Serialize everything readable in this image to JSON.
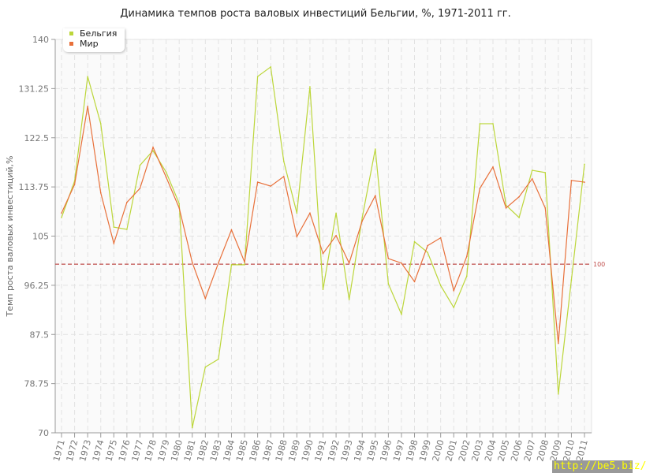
{
  "chart_data": {
    "type": "line",
    "title": "Динамика темпов роста валовых инвестиций Бельгии, %, 1971-2011 гг.",
    "ylabel": "Темп роста валовых инвестиций,%",
    "xlabel": "",
    "ylim": [
      70,
      140
    ],
    "yticks": [
      "70",
      "78.75",
      "87.5",
      "96.25",
      "105",
      "113.75",
      "122.5",
      "131.25",
      "140"
    ],
    "x": [
      1971,
      1972,
      1973,
      1974,
      1975,
      1976,
      1977,
      1978,
      1979,
      1980,
      1981,
      1982,
      1983,
      1984,
      1985,
      1986,
      1987,
      1988,
      1989,
      1990,
      1991,
      1992,
      1993,
      1994,
      1995,
      1996,
      1997,
      1998,
      1999,
      2000,
      2001,
      2002,
      2003,
      2004,
      2005,
      2006,
      2007,
      2008,
      2009,
      2010,
      2011
    ],
    "grid": true,
    "legend_position": "top-left",
    "reference_line": {
      "value": 100,
      "label": "100",
      "color": "#c0504d"
    },
    "series": [
      {
        "name": "Бельгия",
        "color": "#bcd63a",
        "values": [
          108.3,
          114.8,
          133.4,
          125,
          106.6,
          106.2,
          117.6,
          120.2,
          116.4,
          110.8,
          70.9,
          81.7,
          83.1,
          99.9,
          99.9,
          133.4,
          135.1,
          118.3,
          109.1,
          131.6,
          95.5,
          109.1,
          93.7,
          108.3,
          120.5,
          96.5,
          91.1,
          104,
          102.1,
          96.2,
          92.3,
          97.9,
          125,
          125,
          110.5,
          108.3,
          116.7,
          116.3,
          76.9,
          97.2,
          117.8
        ]
      },
      {
        "name": "Мир",
        "color": "#e8703a",
        "values": [
          109.1,
          114.2,
          128.1,
          112.7,
          103.7,
          111,
          113.5,
          120.8,
          115.5,
          110,
          100.3,
          93.9,
          100.2,
          106.1,
          100.4,
          114.6,
          113.9,
          115.6,
          104.9,
          109.1,
          101.9,
          105.1,
          100.2,
          107.7,
          112.2,
          101,
          100.2,
          96.9,
          103.3,
          104.7,
          95.3,
          101.4,
          113.5,
          117.3,
          110,
          112,
          115.2,
          110,
          85.9,
          114.9,
          114.6
        ]
      }
    ]
  },
  "watermark": "http://be5.biz/"
}
